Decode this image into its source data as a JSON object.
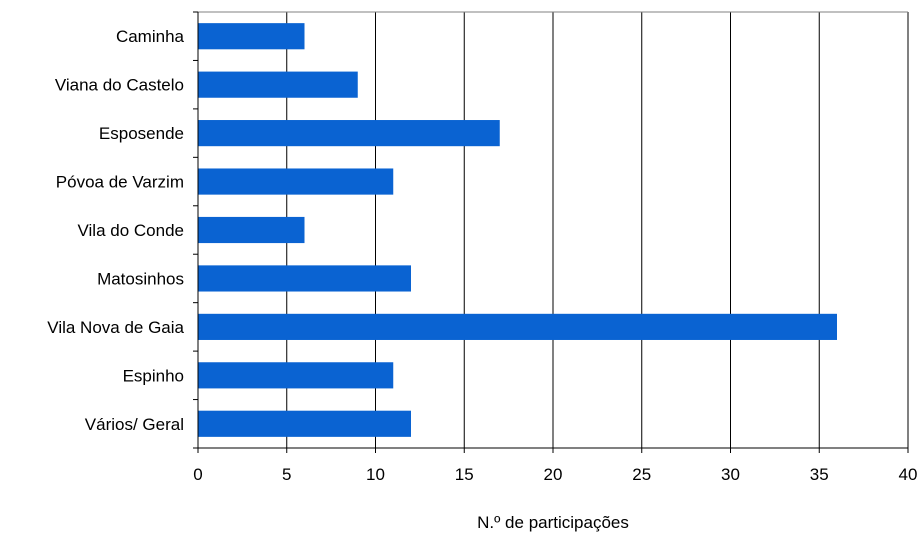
{
  "chart_data": {
    "type": "bar",
    "orientation": "horizontal",
    "categories": [
      "Caminha",
      "Viana do Castelo",
      "Esposende",
      "Póvoa de Varzim",
      "Vila do Conde",
      "Matosinhos",
      "Vila Nova de Gaia",
      "Espinho",
      "Vários/ Geral"
    ],
    "values": [
      6,
      9,
      17,
      11,
      6,
      12,
      36,
      11,
      12
    ],
    "xlabel": "N.º de participações",
    "ylabel": "",
    "xlim": [
      0,
      40
    ],
    "xticks": [
      "0",
      "5",
      "10",
      "15",
      "20",
      "25",
      "30",
      "35",
      "40"
    ],
    "grid": "vertical",
    "legend": "none",
    "bar_color": "#0a63d2"
  }
}
